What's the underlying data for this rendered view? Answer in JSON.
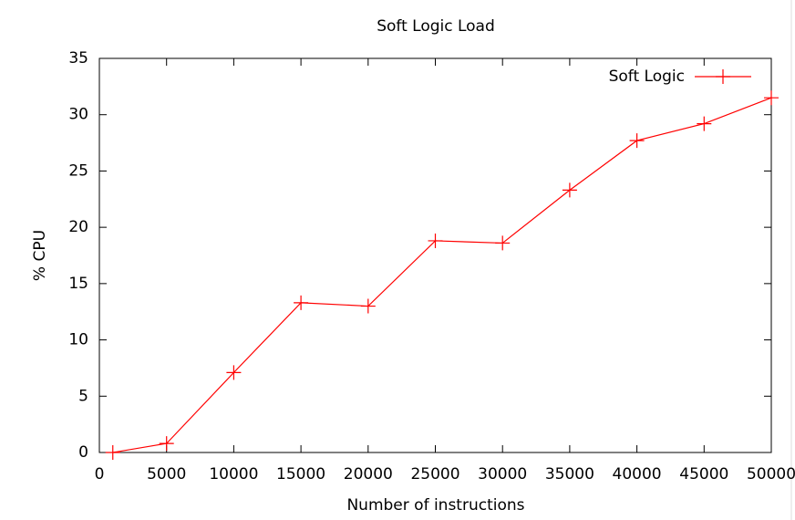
{
  "chart_data": {
    "type": "line",
    "title": "Soft Logic Load",
    "xlabel": "Number of instructions",
    "ylabel": "% CPU",
    "xlim": [
      0,
      50000
    ],
    "xticks": [
      0,
      5000,
      10000,
      15000,
      20000,
      25000,
      30000,
      35000,
      40000,
      45000,
      50000
    ],
    "ylim": [
      0,
      35
    ],
    "yticks": [
      0,
      5,
      10,
      15,
      20,
      25,
      30,
      35
    ],
    "legend": "top-right",
    "series": [
      {
        "name": "Soft Logic",
        "color": "#ff0000",
        "x": [
          1000,
          5000,
          10000,
          15000,
          20000,
          25000,
          30000,
          35000,
          40000,
          45000,
          50000
        ],
        "values": [
          0,
          0.8,
          7.1,
          13.3,
          13.0,
          18.8,
          18.6,
          23.3,
          27.7,
          29.2,
          31.5
        ]
      }
    ]
  }
}
